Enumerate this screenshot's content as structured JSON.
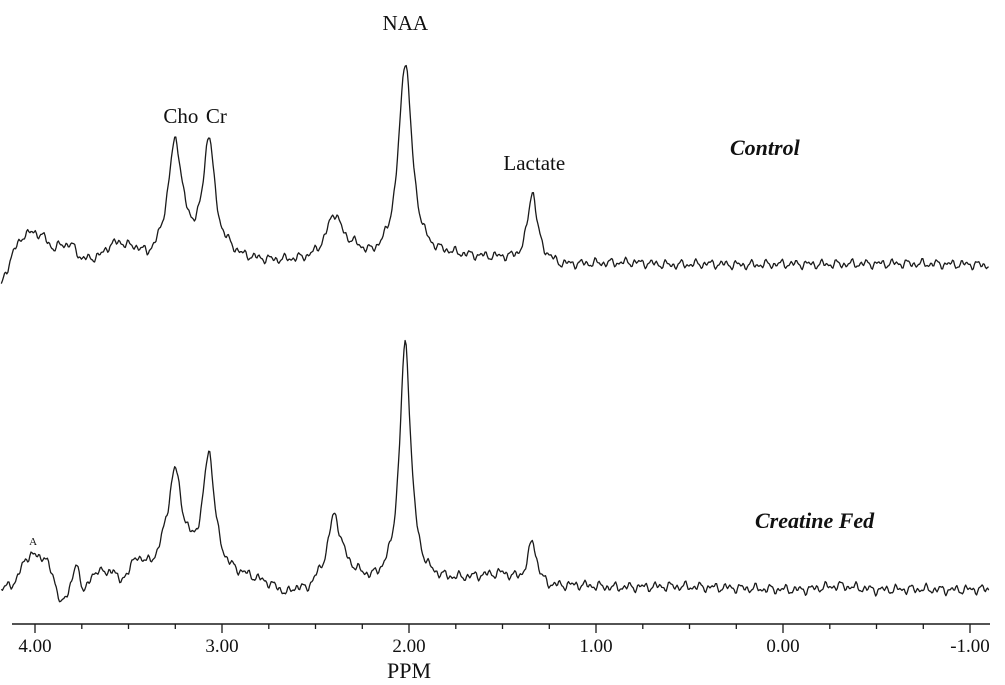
{
  "chart_data": {
    "type": "line",
    "xlabel": "PPM",
    "ylabel": "",
    "x_reversed": true,
    "xlim": [
      4.2,
      -1.05
    ],
    "ticks": [
      {
        "value": 4.0,
        "label": "4.00"
      },
      {
        "value": 3.0,
        "label": "3.00"
      },
      {
        "value": 2.0,
        "label": "2.00"
      },
      {
        "value": 1.0,
        "label": "1.00"
      },
      {
        "value": 0.0,
        "label": "0.00"
      },
      {
        "value": -1.0,
        "label": "-1.00"
      }
    ],
    "peak_labels": [
      {
        "name": "cho",
        "text": "Cho",
        "ppm": 3.22
      },
      {
        "name": "cr",
        "text": "Cr",
        "ppm": 3.03
      },
      {
        "name": "naa",
        "text": "NAA",
        "ppm": 2.02
      },
      {
        "name": "lactate",
        "text": "Lactate",
        "ppm": 1.33
      }
    ],
    "marker_a": {
      "text": "A",
      "ppm": 4.01
    },
    "series": [
      {
        "name": "Control",
        "baseline": [
          [
            4.18,
            -0.6
          ],
          [
            4.12,
            0.2
          ],
          [
            4.06,
            0.65
          ],
          [
            4.0,
            0.72
          ],
          [
            3.95,
            0.58
          ],
          [
            3.9,
            0.3
          ],
          [
            3.85,
            0.42
          ],
          [
            3.8,
            0.38
          ],
          [
            3.75,
            0.05
          ],
          [
            3.7,
            0.05
          ],
          [
            3.65,
            0.12
          ],
          [
            3.6,
            0.35
          ],
          [
            3.55,
            0.42
          ],
          [
            3.5,
            0.3
          ],
          [
            3.45,
            0.22
          ],
          [
            3.4,
            0.0
          ],
          [
            3.35,
            0.06
          ],
          [
            3.3,
            0.18
          ],
          [
            3.1,
            0.2
          ],
          [
            2.97,
            0.2
          ],
          [
            2.9,
            0.05
          ],
          [
            2.8,
            0.0
          ],
          [
            2.7,
            -0.02
          ],
          [
            2.55,
            0.0
          ],
          [
            2.35,
            0.15
          ],
          [
            2.3,
            0.22
          ],
          [
            2.2,
            0.0
          ],
          [
            2.12,
            0.05
          ],
          [
            1.95,
            0.12
          ],
          [
            1.88,
            0.08
          ],
          [
            1.8,
            0.12
          ],
          [
            1.7,
            0.1
          ],
          [
            1.6,
            0.08
          ],
          [
            1.5,
            0.06
          ],
          [
            1.42,
            0.0
          ],
          [
            1.25,
            0.0
          ],
          [
            1.2,
            -0.1
          ],
          [
            1.0,
            -0.05
          ],
          [
            0.8,
            -0.02
          ],
          [
            0.6,
            -0.08
          ],
          [
            0.4,
            -0.05
          ],
          [
            0.2,
            -0.08
          ],
          [
            0.0,
            -0.05
          ],
          [
            -0.2,
            -0.06
          ],
          [
            -0.4,
            -0.05
          ],
          [
            -0.6,
            -0.04
          ],
          [
            -0.8,
            -0.05
          ],
          [
            -1.0,
            -0.06
          ],
          [
            -1.1,
            -0.08
          ]
        ],
        "peaks": [
          [
            3.25,
            2.7,
            0.045
          ],
          [
            3.07,
            2.75,
            0.035
          ],
          [
            2.4,
            1.0,
            0.05
          ],
          [
            2.02,
            4.8,
            0.042
          ],
          [
            1.34,
            1.7,
            0.03
          ]
        ]
      },
      {
        "name": "Creatine Fed",
        "baseline": [
          [
            4.18,
            0.0
          ],
          [
            4.1,
            0.2
          ],
          [
            4.05,
            0.75
          ],
          [
            4.0,
            0.8
          ],
          [
            3.95,
            0.75
          ],
          [
            3.9,
            0.3
          ],
          [
            3.86,
            -0.4
          ],
          [
            3.82,
            0.0
          ],
          [
            3.78,
            0.55
          ],
          [
            3.74,
            0.0
          ],
          [
            3.7,
            0.2
          ],
          [
            3.66,
            0.5
          ],
          [
            3.62,
            0.3
          ],
          [
            3.58,
            0.5
          ],
          [
            3.55,
            0.1
          ],
          [
            3.5,
            0.4
          ],
          [
            3.45,
            0.7
          ],
          [
            3.4,
            0.5
          ],
          [
            3.35,
            0.55
          ],
          [
            3.3,
            0.9
          ],
          [
            3.1,
            0.6
          ],
          [
            2.95,
            0.35
          ],
          [
            2.85,
            0.25
          ],
          [
            2.75,
            0.1
          ],
          [
            2.65,
            -0.15
          ],
          [
            2.6,
            0.0
          ],
          [
            2.55,
            -0.1
          ],
          [
            2.5,
            0.1
          ],
          [
            2.35,
            0.4
          ],
          [
            2.3,
            0.3
          ],
          [
            2.2,
            0.1
          ],
          [
            1.9,
            0.15
          ],
          [
            1.75,
            0.2
          ],
          [
            1.6,
            0.3
          ],
          [
            1.5,
            0.35
          ],
          [
            1.42,
            0.2
          ],
          [
            1.25,
            0.05
          ],
          [
            1.1,
            0.1
          ],
          [
            0.9,
            0.05
          ],
          [
            0.6,
            0.08
          ],
          [
            0.3,
            0.05
          ],
          [
            0.1,
            0.02
          ],
          [
            -0.1,
            0.0
          ],
          [
            -0.3,
            0.1
          ],
          [
            -0.5,
            0.0
          ],
          [
            -0.7,
            0.02
          ],
          [
            -0.9,
            0.0
          ],
          [
            -1.1,
            0.02
          ]
        ],
        "peaks": [
          [
            3.25,
            1.9,
            0.04
          ],
          [
            3.07,
            2.6,
            0.035
          ],
          [
            2.4,
            1.4,
            0.04
          ],
          [
            2.02,
            5.6,
            0.036
          ],
          [
            1.34,
            1.0,
            0.028
          ]
        ]
      }
    ]
  }
}
